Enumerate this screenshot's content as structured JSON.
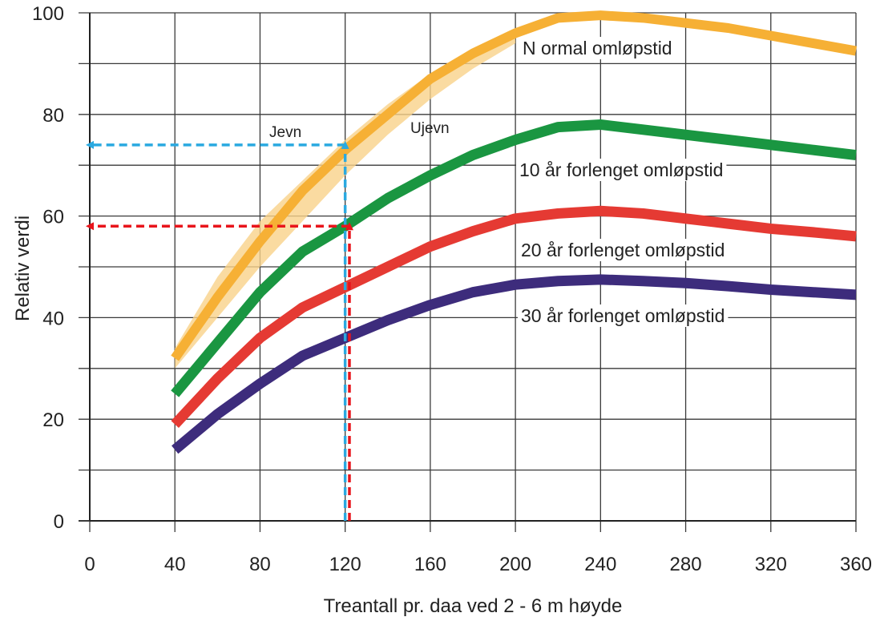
{
  "chart_data": {
    "type": "line",
    "xlabel": "Treantall pr. daa ved 2 - 6 m høyde",
    "ylabel": "Relativ verdi",
    "xlim": [
      0,
      360
    ],
    "ylim": [
      0,
      100
    ],
    "x_ticks": [
      0,
      40,
      80,
      120,
      160,
      200,
      240,
      280,
      320,
      360
    ],
    "x_tick_labels": [
      "0",
      "40",
      "80",
      "120",
      "160",
      "200",
      "240",
      "280",
      "320",
      "360"
    ],
    "y_ticks": [
      0,
      20,
      40,
      60,
      80,
      100
    ],
    "y_tick_labels": [
      "0",
      "20",
      "40",
      "60",
      "80",
      "100"
    ],
    "grid": true,
    "band": {
      "color": "#f9d28a",
      "upper": {
        "x": [
          40,
          60,
          80,
          100,
          120,
          140,
          160,
          180,
          200
        ],
        "y": [
          34,
          48,
          59,
          67,
          75,
          82,
          88,
          93,
          97
        ]
      },
      "lower": {
        "x": [
          40,
          60,
          80,
          100,
          120,
          140,
          160,
          180,
          200
        ],
        "y": [
          30,
          40,
          50,
          59,
          68,
          76,
          83,
          89,
          94
        ]
      },
      "labels": {
        "jevn": "Jevn",
        "ujevn": "Ujevn"
      }
    },
    "series": [
      {
        "name": "N ormal omløpstid",
        "color": "#f6b035",
        "x": [
          40,
          60,
          80,
          100,
          120,
          140,
          160,
          180,
          200,
          220,
          240,
          260,
          280,
          300,
          320,
          340,
          360
        ],
        "y": [
          32,
          44,
          55,
          65,
          73,
          80,
          87,
          92,
          96,
          99,
          99.5,
          99,
          98,
          97,
          95.5,
          94,
          92.5
        ]
      },
      {
        "name": "10 år forlenget omløpstid",
        "color": "#1a9641",
        "x": [
          40,
          60,
          80,
          100,
          120,
          140,
          160,
          180,
          200,
          220,
          240,
          260,
          280,
          300,
          320,
          340,
          360
        ],
        "y": [
          25,
          35,
          45,
          53,
          58,
          63.5,
          68,
          72,
          75,
          77.5,
          78,
          77,
          76,
          75,
          74,
          73,
          72
        ]
      },
      {
        "name": "20 år forlenget omløpstid",
        "color": "#e53a33",
        "x": [
          40,
          60,
          80,
          100,
          120,
          140,
          160,
          180,
          200,
          220,
          240,
          260,
          280,
          300,
          320,
          340,
          360
        ],
        "y": [
          19,
          28,
          36,
          42,
          46,
          50,
          54,
          57,
          59.5,
          60.5,
          61,
          60.5,
          59.5,
          58.5,
          57.5,
          56.8,
          56
        ]
      },
      {
        "name": "30 år forlenget omløpstid",
        "color": "#3d2c7c",
        "x": [
          40,
          60,
          80,
          100,
          120,
          140,
          160,
          180,
          200,
          220,
          240,
          260,
          280,
          300,
          320,
          340,
          360
        ],
        "y": [
          14,
          21,
          27,
          32.5,
          36,
          39.5,
          42.5,
          45,
          46.5,
          47.2,
          47.5,
          47.2,
          46.8,
          46.2,
          45.5,
          45,
          44.5
        ]
      }
    ],
    "annotations": [
      {
        "type": "arrow-dashed",
        "color": "#2aa9e0",
        "from": [
          120,
          0
        ],
        "to": [
          120,
          74
        ]
      },
      {
        "type": "arrow-dashed",
        "color": "#2aa9e0",
        "from": [
          120,
          74
        ],
        "to": [
          0,
          74
        ]
      },
      {
        "type": "arrow-dashed",
        "color": "#e8141b",
        "from": [
          122,
          0
        ],
        "to": [
          122,
          58
        ]
      },
      {
        "type": "arrow-dashed",
        "color": "#e8141b",
        "from": [
          122,
          58
        ],
        "to": [
          0,
          58
        ]
      }
    ]
  }
}
